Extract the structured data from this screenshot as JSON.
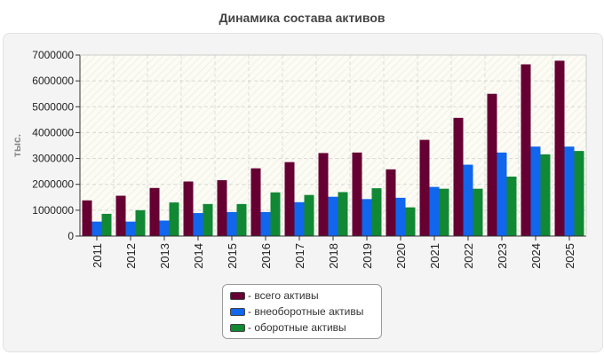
{
  "chart_data": {
    "type": "bar",
    "title": "Динамика состава активов",
    "ylabel": "тыс.",
    "xlabel": "",
    "ylim": [
      0,
      7000000
    ],
    "yticks": [
      0,
      1000000,
      2000000,
      3000000,
      4000000,
      5000000,
      6000000,
      7000000
    ],
    "grid": true,
    "legend_position": "bottom",
    "categories": [
      "2011",
      "2012",
      "2013",
      "2014",
      "2015",
      "2016",
      "2017",
      "2018",
      "2019",
      "2020",
      "2021",
      "2022",
      "2023",
      "2024",
      "2025"
    ],
    "series": [
      {
        "name": "- всего активы",
        "color": "#660033",
        "values": [
          1380000,
          1560000,
          1860000,
          2110000,
          2160000,
          2620000,
          2860000,
          3210000,
          3230000,
          2580000,
          3720000,
          4570000,
          5500000,
          6640000,
          6780000
        ]
      },
      {
        "name": "- внеоборотные активы",
        "color": "#1166ee",
        "values": [
          560000,
          560000,
          600000,
          890000,
          930000,
          930000,
          1310000,
          1520000,
          1430000,
          1480000,
          1900000,
          2760000,
          3230000,
          3460000,
          3460000
        ]
      },
      {
        "name": "- оборотные активы",
        "color": "#118833",
        "values": [
          860000,
          1000000,
          1300000,
          1240000,
          1240000,
          1690000,
          1590000,
          1700000,
          1850000,
          1110000,
          1830000,
          1830000,
          2300000,
          3160000,
          3290000
        ]
      }
    ]
  }
}
